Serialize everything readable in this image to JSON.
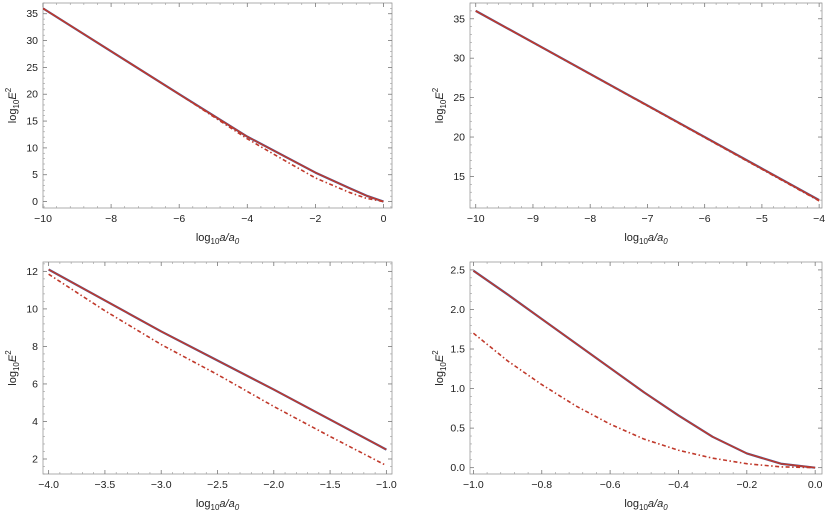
{
  "chart_data": [
    {
      "type": "line",
      "title": "",
      "xlabel": "log10a/a0",
      "ylabel": "log10E2",
      "xlim": [
        -10,
        0.25
      ],
      "ylim": [
        -1.2,
        37
      ],
      "xticks": [
        -10,
        -8,
        -6,
        -4,
        -2,
        0
      ],
      "yticks": [
        0,
        5,
        10,
        15,
        20,
        25,
        30,
        35
      ],
      "grid": false,
      "series": [
        {
          "style": "solid",
          "color": "#3b5ba5",
          "x": [
            -10,
            -8,
            -6,
            -4,
            -2,
            -1,
            -0.5,
            0
          ],
          "y": [
            36,
            28,
            20,
            12.1,
            5.4,
            2.5,
            1.1,
            0
          ]
        },
        {
          "style": "solid",
          "color": "#c0392b",
          "x": [
            -10,
            -8,
            -6,
            -4,
            -2,
            -1,
            -0.5,
            0
          ],
          "y": [
            36,
            28,
            20,
            12.1,
            5.4,
            2.5,
            1.1,
            0
          ]
        },
        {
          "style": "dashed",
          "color": "#c0392b",
          "x": [
            -10,
            -8,
            -6,
            -4,
            -3,
            -2,
            -1,
            -0.5,
            0
          ],
          "y": [
            36,
            28,
            20,
            11.7,
            8.0,
            4.4,
            1.7,
            0.6,
            0
          ]
        }
      ]
    },
    {
      "type": "line",
      "title": "",
      "xlabel": "log10a/a0",
      "ylabel": "log10E2",
      "xlim": [
        -10.1,
        -3.95
      ],
      "ylim": [
        11,
        37
      ],
      "xticks": [
        -10,
        -9,
        -8,
        -7,
        -6,
        -5,
        -4
      ],
      "yticks": [
        15,
        20,
        25,
        30,
        35
      ],
      "grid": false,
      "series": [
        {
          "style": "solid",
          "color": "#3b5ba5",
          "x": [
            -10,
            -4
          ],
          "y": [
            36,
            12
          ]
        },
        {
          "style": "solid",
          "color": "#c0392b",
          "x": [
            -10,
            -4
          ],
          "y": [
            36,
            12
          ]
        },
        {
          "style": "dashed",
          "color": "#c0392b",
          "x": [
            -10,
            -4
          ],
          "y": [
            36,
            11.9
          ]
        }
      ]
    },
    {
      "type": "line",
      "title": "",
      "xlabel": "log10a/a0",
      "ylabel": "log10E2",
      "xlim": [
        -4.05,
        -0.95
      ],
      "ylim": [
        1.2,
        12.5
      ],
      "xticks": [
        -4.0,
        -3.5,
        -3.0,
        -2.5,
        -2.0,
        -1.5,
        -1.0
      ],
      "yticks": [
        2,
        4,
        6,
        8,
        10,
        12
      ],
      "grid": false,
      "series": [
        {
          "style": "solid",
          "color": "#3b5ba5",
          "x": [
            -4,
            -3.5,
            -3,
            -2.5,
            -2,
            -1.5,
            -1
          ],
          "y": [
            12.1,
            10.45,
            8.8,
            7.25,
            5.7,
            4.1,
            2.5
          ]
        },
        {
          "style": "solid",
          "color": "#c0392b",
          "x": [
            -4,
            -3.5,
            -3,
            -2.5,
            -2,
            -1.5,
            -1
          ],
          "y": [
            12.1,
            10.45,
            8.8,
            7.25,
            5.7,
            4.1,
            2.5
          ]
        },
        {
          "style": "dashed",
          "color": "#c0392b",
          "x": [
            -4,
            -3.5,
            -3,
            -2.5,
            -2,
            -1.5,
            -1
          ],
          "y": [
            11.85,
            9.9,
            8.1,
            6.5,
            4.8,
            3.2,
            1.65
          ]
        }
      ]
    },
    {
      "type": "line",
      "title": "",
      "xlabel": "log10a/a0",
      "ylabel": "log10E2",
      "xlim": [
        -1.01,
        0.02
      ],
      "ylim": [
        -0.08,
        2.6
      ],
      "xticks": [
        -1.0,
        -0.8,
        -0.6,
        -0.4,
        -0.2,
        0.0
      ],
      "yticks": [
        0.0,
        0.5,
        1.0,
        1.5,
        2.0,
        2.5
      ],
      "grid": false,
      "series": [
        {
          "style": "solid",
          "color": "#3b5ba5",
          "x": [
            -1,
            -0.9,
            -0.8,
            -0.7,
            -0.6,
            -0.5,
            -0.4,
            -0.3,
            -0.2,
            -0.1,
            0
          ],
          "y": [
            2.49,
            2.19,
            1.88,
            1.57,
            1.26,
            0.95,
            0.66,
            0.39,
            0.18,
            0.05,
            0
          ]
        },
        {
          "style": "solid",
          "color": "#c0392b",
          "x": [
            -1,
            -0.9,
            -0.8,
            -0.7,
            -0.6,
            -0.5,
            -0.4,
            -0.3,
            -0.2,
            -0.1,
            0
          ],
          "y": [
            2.49,
            2.19,
            1.88,
            1.57,
            1.26,
            0.95,
            0.66,
            0.39,
            0.18,
            0.05,
            0
          ]
        },
        {
          "style": "dashed",
          "color": "#c0392b",
          "x": [
            -1,
            -0.9,
            -0.8,
            -0.7,
            -0.6,
            -0.5,
            -0.4,
            -0.3,
            -0.2,
            -0.1,
            0
          ],
          "y": [
            1.7,
            1.35,
            1.05,
            0.78,
            0.55,
            0.36,
            0.22,
            0.12,
            0.05,
            0.01,
            0
          ]
        }
      ]
    }
  ]
}
